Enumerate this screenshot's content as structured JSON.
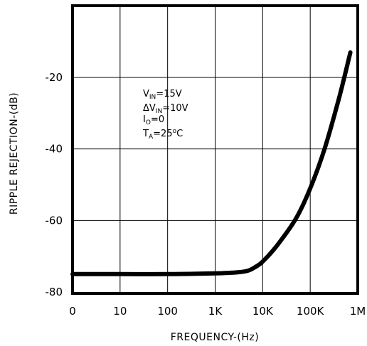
{
  "chart_data": {
    "type": "line",
    "title": "",
    "xlabel": "FREQUENCY-(Hz)",
    "ylabel": "RIPPLE REJECTION-(dB)",
    "x_scale": "log",
    "x_ticks": [
      "0",
      "10",
      "100",
      "1K",
      "10K",
      "100K",
      "1M"
    ],
    "y_ticks": [
      "-20",
      "-40",
      "-60",
      "-80"
    ],
    "ylim": [
      -80,
      -20
    ],
    "grid": true,
    "series": [
      {
        "x": [
          1,
          10,
          100,
          1000,
          3000,
          5000,
          7000,
          10000,
          20000,
          50000,
          100000,
          200000,
          400000,
          700000
        ],
        "y": [
          -75,
          -75,
          -75,
          -74.8,
          -74.5,
          -74,
          -73,
          -71.5,
          -67,
          -59.5,
          -51,
          -40,
          -26,
          -13
        ]
      }
    ],
    "annotations": {
      "vin": {
        "main": "V",
        "sub": "IN",
        "rest": "=15V"
      },
      "dvin": {
        "main": "ΔV",
        "sub": "IN",
        "rest": "=10V"
      },
      "io": {
        "main": "I",
        "sub": "O",
        "rest": "=0"
      },
      "ta": {
        "main": "T",
        "sub": "A",
        "mid": "=25",
        "sup": "o",
        "rest": "C"
      }
    }
  }
}
